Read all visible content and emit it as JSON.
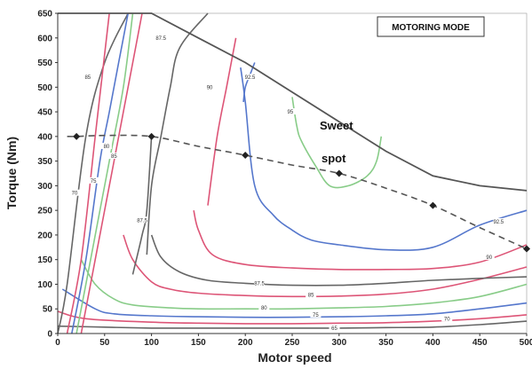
{
  "chart_data": {
    "type": "line",
    "xlabel": "Motor speed",
    "ylabel": "Torque (Nm)",
    "xlim": [
      0,
      500
    ],
    "ylim": [
      0,
      650
    ],
    "x_ticks": [
      "0",
      "50",
      "100",
      "150",
      "200",
      "250",
      "300",
      "350",
      "400",
      "450",
      "500"
    ],
    "y_ticks": [
      "0",
      "50",
      "100",
      "150",
      "200",
      "250",
      "300",
      "350",
      "400",
      "450",
      "500",
      "550",
      "600",
      "650"
    ],
    "mode_label": "MOTORING MODE",
    "annotations": [
      "Sweet",
      "spot"
    ],
    "colors": {
      "envelope": "#555555",
      "optimal": "#555555",
      "gray": "#666666",
      "blue": "#5577cc",
      "green": "#88cc88",
      "red": "#dd5577"
    },
    "envelope": {
      "x": [
        0,
        100,
        150,
        200,
        250,
        300,
        350,
        400,
        450,
        500
      ],
      "y": [
        650,
        650,
        600,
        550,
        490,
        430,
        370,
        320,
        300,
        290
      ]
    },
    "optimal_line": {
      "style": "dashed",
      "x": [
        10,
        20,
        50,
        100,
        150,
        200,
        250,
        300,
        350,
        400,
        450,
        500
      ],
      "y": [
        400,
        400,
        402,
        400,
        380,
        362,
        342,
        325,
        295,
        260,
        215,
        172
      ]
    },
    "marked_points": {
      "x": [
        20,
        100,
        200,
        300,
        400,
        500
      ],
      "y": [
        400,
        400,
        362,
        325,
        260,
        172
      ]
    },
    "contours": [
      {
        "name": "65",
        "color": "gray",
        "label_x": 295,
        "label_y": 11,
        "x": [
          0,
          50,
          100,
          150,
          200,
          250,
          300,
          350,
          400,
          450,
          500
        ],
        "y": [
          15,
          13,
          11,
          11,
          11,
          11,
          11,
          12,
          13,
          18,
          25
        ]
      },
      {
        "name": "70",
        "color": "red",
        "label_x": 415,
        "label_y": 30,
        "x": [
          0,
          30,
          100,
          150,
          200,
          250,
          300,
          350,
          400,
          450,
          500
        ],
        "y": [
          45,
          30,
          23,
          21,
          20,
          20,
          21,
          22,
          25,
          30,
          38
        ]
      },
      {
        "name": "75",
        "color": "blue",
        "label_x": 275,
        "label_y": 38,
        "x": [
          5,
          40,
          60,
          100,
          150,
          200,
          250,
          300,
          350,
          400,
          450,
          500
        ],
        "y": [
          90,
          50,
          40,
          36,
          34,
          33,
          33,
          34,
          36,
          40,
          50,
          62
        ]
      },
      {
        "name": "80",
        "color": "green",
        "label_x": 220,
        "label_y": 52,
        "x": [
          25,
          40,
          60,
          80,
          120,
          150,
          200,
          250,
          300,
          350,
          400,
          450,
          500
        ],
        "y": [
          150,
          100,
          70,
          58,
          52,
          50,
          50,
          50,
          52,
          55,
          62,
          75,
          100
        ]
      },
      {
        "name": "85",
        "color": "red",
        "label_x": 270,
        "label_y": 78,
        "x": [
          70,
          80,
          100,
          120,
          150,
          200,
          250,
          300,
          350,
          400,
          450,
          500
        ],
        "y": [
          200,
          150,
          105,
          90,
          82,
          77,
          75,
          76,
          80,
          90,
          110,
          135
        ]
      },
      {
        "name": "87.5",
        "color": "gray",
        "label_x": 215,
        "label_y": 102,
        "x": [
          100,
          110,
          130,
          160,
          200,
          250,
          300,
          350,
          400,
          450,
          500
        ],
        "y": [
          200,
          155,
          125,
          108,
          102,
          98,
          98,
          102,
          108,
          112,
          115
        ]
      },
      {
        "name": "90",
        "color": "red",
        "label_x": 460,
        "label_y": 155,
        "x": [
          145,
          150,
          165,
          200,
          250,
          300,
          350,
          400,
          450,
          500
        ],
        "y": [
          250,
          210,
          160,
          140,
          133,
          130,
          130,
          132,
          145,
          180
        ]
      },
      {
        "name": "92.5",
        "color": "blue",
        "label_x": 470,
        "label_y": 227,
        "x": [
          195,
          200,
          210,
          230,
          250,
          270,
          300,
          350,
          400,
          450,
          500
        ],
        "y": [
          540,
          470,
          300,
          240,
          210,
          190,
          180,
          170,
          175,
          220,
          250
        ]
      },
      {
        "name": "95",
        "color": "green",
        "label_x": 248,
        "label_y": 450,
        "x": [
          250,
          255,
          260,
          275,
          290,
          310,
          330,
          340,
          345
        ],
        "y": [
          480,
          420,
          390,
          340,
          300,
          300,
          320,
          350,
          400
        ]
      },
      {
        "name": "85",
        "color": "gray",
        "label_x": 32,
        "label_y": 520,
        "x": [
          0,
          10,
          30,
          50,
          75
        ],
        "y": [
          0,
          100,
          400,
          550,
          650
        ]
      },
      {
        "name": "70",
        "color": "red",
        "label_x": 18,
        "label_y": 285,
        "x": [
          10,
          25,
          40,
          55
        ],
        "y": [
          0,
          150,
          400,
          650
        ]
      },
      {
        "name": "75",
        "color": "blue",
        "label_x": 38,
        "label_y": 310,
        "x": [
          15,
          30,
          45,
          55,
          65,
          75
        ],
        "y": [
          0,
          150,
          350,
          450,
          550,
          650
        ]
      },
      {
        "name": "80",
        "color": "green",
        "label_x": 52,
        "label_y": 380,
        "x": [
          20,
          35,
          55,
          70,
          80
        ],
        "y": [
          0,
          150,
          350,
          500,
          650
        ]
      },
      {
        "name": "85",
        "color": "red",
        "label_x": 60,
        "label_y": 360,
        "x": [
          25,
          40,
          60,
          75,
          90
        ],
        "y": [
          0,
          150,
          350,
          500,
          650
        ]
      },
      {
        "name": "87.5",
        "color": "gray",
        "label_x": 110,
        "label_y": 600,
        "x": [
          95,
          100,
          110,
          120,
          130,
          160
        ],
        "y": [
          160,
          300,
          400,
          500,
          580,
          650
        ]
      },
      {
        "name": "87.5",
        "color": "gray",
        "label_x": 90,
        "label_y": 230,
        "x": [
          80,
          90,
          95,
          100
        ],
        "y": [
          120,
          200,
          250,
          400
        ]
      },
      {
        "name": "90",
        "color": "red",
        "label_x": 162,
        "label_y": 500,
        "x": [
          160,
          170,
          180,
          190
        ],
        "y": [
          260,
          400,
          500,
          600
        ]
      },
      {
        "name": "92.5",
        "color": "blue",
        "label_x": 205,
        "label_y": 520,
        "x": [
          198,
          200,
          205,
          210
        ],
        "y": [
          470,
          500,
          525,
          550
        ]
      }
    ]
  }
}
